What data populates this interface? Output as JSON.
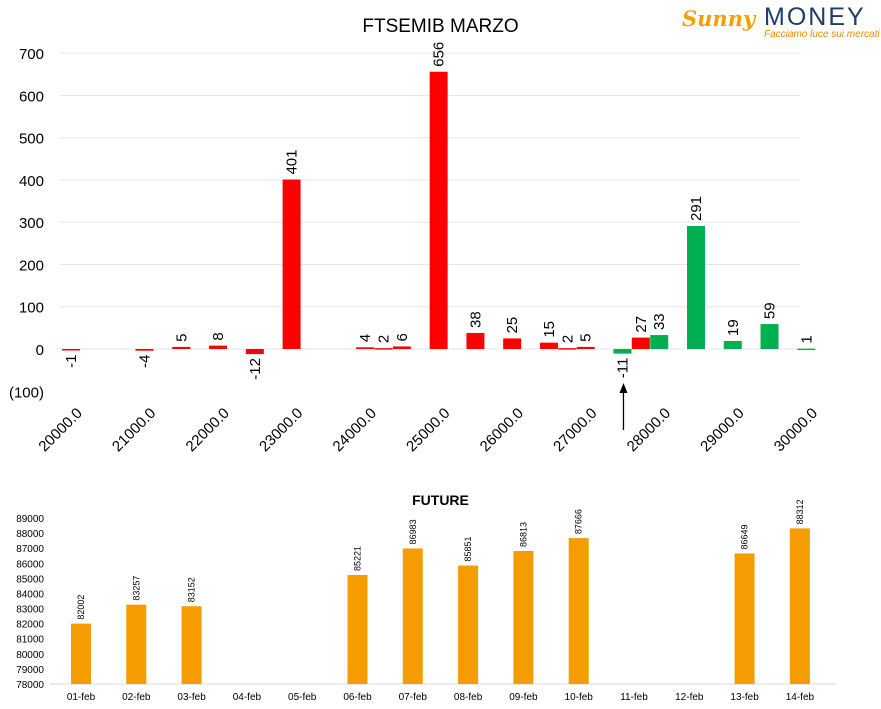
{
  "logo": {
    "brand_left": "Sunny",
    "brand_right": "MONEY",
    "tagline": "Facciamo luce sui mercati"
  },
  "chart_data": [
    {
      "type": "bar",
      "title": "FTSEMIB MARZO",
      "x": [
        20000,
        20500,
        21000,
        21500,
        22000,
        22500,
        23000,
        23500,
        24000,
        24250,
        24500,
        25000,
        25500,
        26000,
        26500,
        26750,
        27000,
        27500,
        27750,
        28000,
        28500,
        29000,
        29500,
        30000
      ],
      "values": [
        -1,
        null,
        -4,
        5,
        8,
        -12,
        401,
        null,
        4,
        2,
        6,
        656,
        38,
        25,
        15,
        2,
        5,
        -11,
        27,
        33,
        291,
        19,
        59,
        1
      ],
      "bar_colors": [
        "#ff0000",
        null,
        "#ff0000",
        "#ff0000",
        "#ff0000",
        "#ff0000",
        "#ff0000",
        null,
        "#ff0000",
        "#ff0000",
        "#ff0000",
        "#ff0000",
        "#ff0000",
        "#ff0000",
        "#ff0000",
        "#ff0000",
        "#ff0000",
        "#00b050",
        "#ff0000",
        "#00b050",
        "#00b050",
        "#00b050",
        "#00b050",
        "#00b050"
      ],
      "x_tick_labels": [
        "20000.0",
        "21000.0",
        "22000.0",
        "23000.0",
        "24000.0",
        "25000.0",
        "26000.0",
        "27000.0",
        "28000.0",
        "29000.0",
        "30000.0"
      ],
      "y_tick_labels": [
        "(100)",
        "0",
        "100",
        "200",
        "300",
        "400",
        "500",
        "600",
        "700"
      ],
      "ylim": [
        -100,
        700
      ],
      "grid": true,
      "annotation_arrow_x": 27500,
      "colors": {
        "negative": "#ff0000",
        "positive": "#00b050",
        "axis_negative": "#c00000"
      }
    },
    {
      "type": "bar",
      "title": "FUTURE",
      "categories": [
        "01-feb",
        "02-feb",
        "03-feb",
        "04-feb",
        "05-feb",
        "06-feb",
        "07-feb",
        "08-feb",
        "09-feb",
        "10-feb",
        "11-feb",
        "12-feb",
        "13-feb",
        "14-feb"
      ],
      "values": [
        82002,
        83257,
        83152,
        null,
        null,
        85221,
        86983,
        85851,
        86813,
        87666,
        null,
        null,
        86649,
        88312
      ],
      "y_tick_labels": [
        "78000",
        "79000",
        "80000",
        "81000",
        "82000",
        "83000",
        "84000",
        "85000",
        "86000",
        "87000",
        "88000",
        "89000"
      ],
      "ylim": [
        78000,
        89000
      ],
      "grid": false,
      "colors": {
        "bar": "#f59c00"
      }
    }
  ]
}
